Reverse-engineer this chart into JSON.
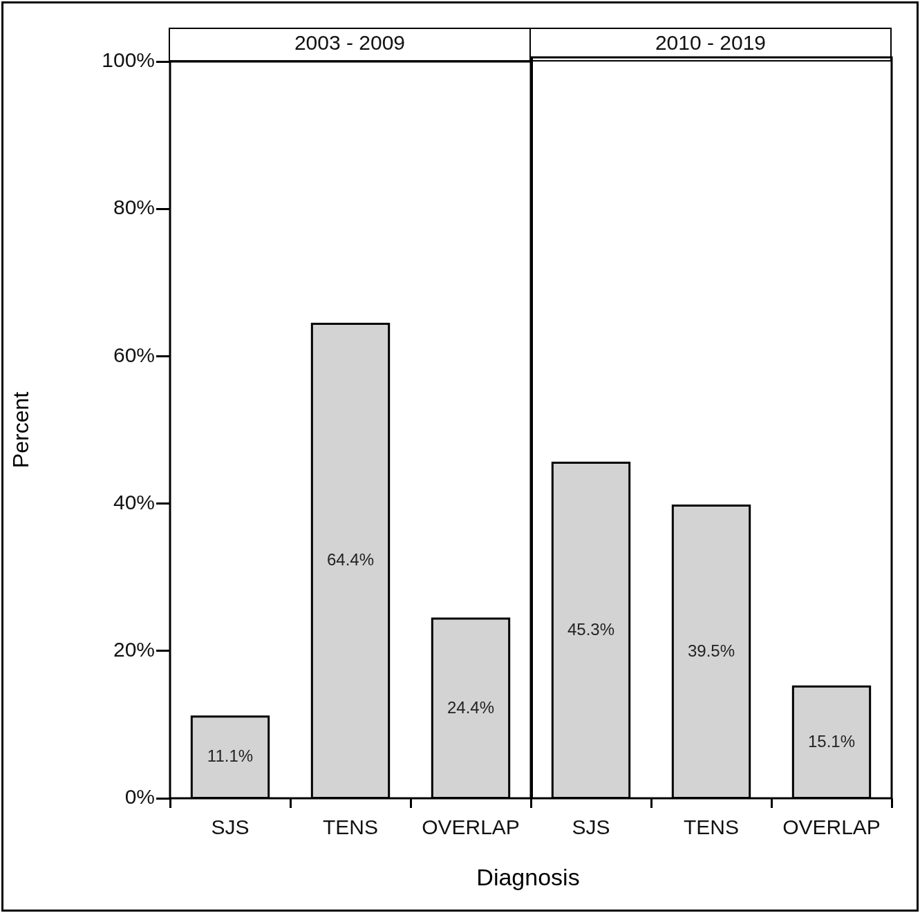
{
  "chart_data": [
    {
      "type": "bar",
      "title": "2003 - 2009",
      "xlabel": "Diagnosis",
      "ylabel": "Percent",
      "categories": [
        "SJS",
        "TENS",
        "OVERLAP"
      ],
      "values": [
        11.1,
        64.4,
        24.4
      ],
      "value_labels": [
        "11.1%",
        "64.4%",
        "24.4%"
      ],
      "color": "#d3d3d3",
      "ylim": [
        0,
        100
      ],
      "yticks": [
        {
          "value": 0,
          "label": "0%"
        },
        {
          "value": 20,
          "label": "20%"
        },
        {
          "value": 40,
          "label": "40%"
        },
        {
          "value": 60,
          "label": "60%"
        },
        {
          "value": 80,
          "label": "80%"
        },
        {
          "value": 100,
          "label": "100%"
        }
      ],
      "legend": false
    },
    {
      "type": "bar",
      "title": "2010 - 2019",
      "categories": [
        "SJS",
        "TENS",
        "OVERLAP"
      ],
      "values": [
        45.3,
        39.5,
        15.1
      ],
      "value_labels": [
        "45.3%",
        "39.5%",
        "15.1%"
      ],
      "color": "#d3d3d3",
      "ylim": [
        0,
        100
      ],
      "tick_labels": "x",
      "legend": false
    }
  ]
}
